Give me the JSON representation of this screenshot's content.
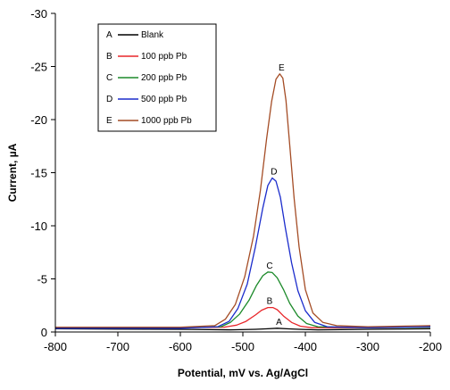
{
  "chart_data": {
    "type": "line",
    "xlabel": "Potential, mV vs. Ag/AgCl",
    "ylabel": "Current, µA",
    "xlim": [
      -800,
      -200
    ],
    "ylim": [
      0,
      -30
    ],
    "y_axis_direction": "inverted (more negative values plotted upward)",
    "x_ticks": [
      "-800",
      "-700",
      "-600",
      "-500",
      "-400",
      "-300",
      "-200"
    ],
    "y_ticks": [
      "0",
      "-5",
      "-10",
      "-15",
      "-20",
      "-25",
      "-30"
    ],
    "grid": false,
    "legend_placement": "top-left",
    "series": [
      {
        "key": "A",
        "name": "Blank",
        "color": "#000000",
        "peak_label": "A",
        "points": [
          [
            -800,
            -0.3
          ],
          [
            -600,
            -0.25
          ],
          [
            -520,
            -0.2
          ],
          [
            -480,
            -0.25
          ],
          [
            -460,
            -0.3
          ],
          [
            -445,
            -0.35
          ],
          [
            -430,
            -0.3
          ],
          [
            -410,
            -0.25
          ],
          [
            -380,
            -0.2
          ],
          [
            -300,
            -0.25
          ],
          [
            -200,
            -0.3
          ]
        ]
      },
      {
        "key": "B",
        "name": "100 ppb Pb",
        "color": "#e8262a",
        "peak_label": "B",
        "points": [
          [
            -800,
            -0.4
          ],
          [
            -600,
            -0.4
          ],
          [
            -530,
            -0.45
          ],
          [
            -510,
            -0.65
          ],
          [
            -495,
            -1.0
          ],
          [
            -480,
            -1.6
          ],
          [
            -470,
            -2.05
          ],
          [
            -460,
            -2.3
          ],
          [
            -452,
            -2.3
          ],
          [
            -445,
            -2.1
          ],
          [
            -435,
            -1.5
          ],
          [
            -422,
            -0.9
          ],
          [
            -408,
            -0.55
          ],
          [
            -390,
            -0.4
          ],
          [
            -300,
            -0.4
          ],
          [
            -200,
            -0.45
          ]
        ]
      },
      {
        "key": "C",
        "name": "200 ppb Pb",
        "color": "#1c8a2a",
        "peak_label": "C",
        "points": [
          [
            -800,
            -0.4
          ],
          [
            -600,
            -0.4
          ],
          [
            -535,
            -0.5
          ],
          [
            -520,
            -0.9
          ],
          [
            -505,
            -1.7
          ],
          [
            -490,
            -3.0
          ],
          [
            -478,
            -4.4
          ],
          [
            -468,
            -5.3
          ],
          [
            -460,
            -5.65
          ],
          [
            -453,
            -5.6
          ],
          [
            -445,
            -5.1
          ],
          [
            -435,
            -4.0
          ],
          [
            -425,
            -2.7
          ],
          [
            -412,
            -1.5
          ],
          [
            -398,
            -0.8
          ],
          [
            -380,
            -0.5
          ],
          [
            -300,
            -0.4
          ],
          [
            -200,
            -0.45
          ]
        ]
      },
      {
        "key": "D",
        "name": "500 ppb Pb",
        "color": "#1b2ccc",
        "peak_label": "D",
        "points": [
          [
            -800,
            -0.35
          ],
          [
            -600,
            -0.35
          ],
          [
            -540,
            -0.5
          ],
          [
            -522,
            -1.0
          ],
          [
            -508,
            -2.2
          ],
          [
            -493,
            -4.5
          ],
          [
            -480,
            -8.0
          ],
          [
            -468,
            -11.7
          ],
          [
            -460,
            -13.8
          ],
          [
            -453,
            -14.5
          ],
          [
            -447,
            -14.2
          ],
          [
            -440,
            -12.7
          ],
          [
            -432,
            -9.8
          ],
          [
            -422,
            -6.5
          ],
          [
            -412,
            -3.9
          ],
          [
            -400,
            -2.0
          ],
          [
            -385,
            -0.9
          ],
          [
            -365,
            -0.5
          ],
          [
            -300,
            -0.4
          ],
          [
            -200,
            -0.5
          ]
        ]
      },
      {
        "key": "E",
        "name": "1000 ppb Pb",
        "color": "#a44c25",
        "peak_label": "E",
        "points": [
          [
            -800,
            -0.45
          ],
          [
            -600,
            -0.45
          ],
          [
            -545,
            -0.6
          ],
          [
            -528,
            -1.2
          ],
          [
            -512,
            -2.6
          ],
          [
            -497,
            -5.2
          ],
          [
            -483,
            -9.0
          ],
          [
            -472,
            -13.3
          ],
          [
            -462,
            -18.2
          ],
          [
            -454,
            -21.7
          ],
          [
            -447,
            -23.8
          ],
          [
            -441,
            -24.3
          ],
          [
            -436,
            -23.9
          ],
          [
            -431,
            -21.8
          ],
          [
            -425,
            -17.6
          ],
          [
            -418,
            -12.6
          ],
          [
            -410,
            -8.0
          ],
          [
            -400,
            -4.0
          ],
          [
            -388,
            -1.8
          ],
          [
            -372,
            -0.9
          ],
          [
            -350,
            -0.6
          ],
          [
            -300,
            -0.5
          ],
          [
            -200,
            -0.6
          ]
        ]
      }
    ]
  }
}
